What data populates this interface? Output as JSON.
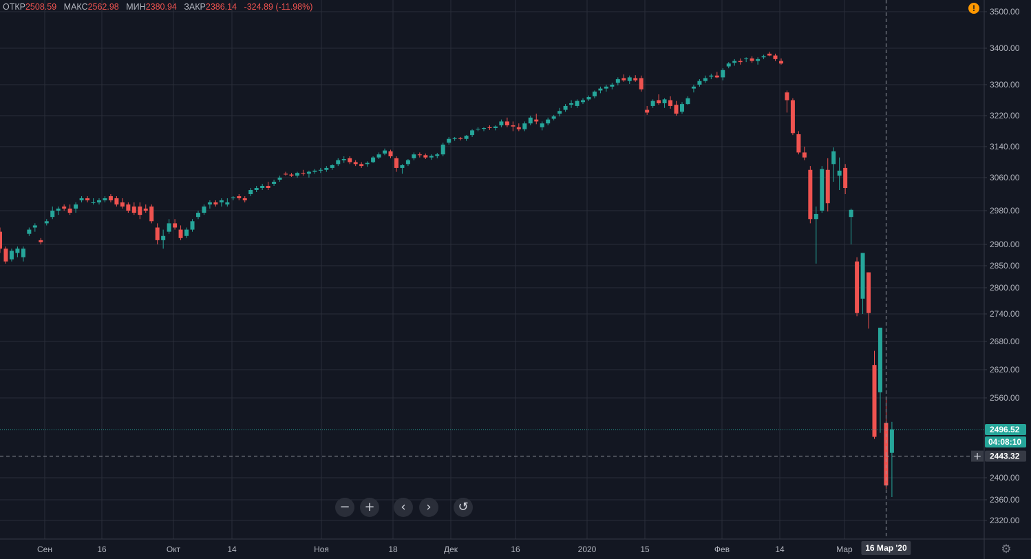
{
  "header": {
    "open_label": "ОТКР",
    "open_value": "2508.59",
    "high_label": "МАКС",
    "high_value": "2562.98",
    "low_label": "МИН",
    "low_value": "2380.94",
    "close_label": "ЗАКР",
    "close_value": "2386.14",
    "change_value": "-324.89 (-11.98%)",
    "warning_icon": "!"
  },
  "toolbar": {
    "zoom_out_icon": "−",
    "zoom_in_icon": "+",
    "scroll_left_icon": "‹",
    "scroll_right_icon": "›",
    "reset_icon": "↺",
    "settings_icon": "⚙"
  },
  "colors": {
    "background": "#131722",
    "grid": "#2a2e39",
    "up": "#26a69a",
    "down": "#ef5350",
    "text": "#b2b5be"
  },
  "chart_data": {
    "type": "candlestick",
    "title": "",
    "price_axis_labels": [
      "3500.00",
      "3400.00",
      "3300.00",
      "3220.00",
      "3140.00",
      "3060.00",
      "2980.00",
      "2900.00",
      "2850.00",
      "2800.00",
      "2740.00",
      "2680.00",
      "2620.00",
      "2560.00",
      "2400.00",
      "2360.00",
      "2320.00"
    ],
    "price_axis_values": [
      3500,
      3400,
      3300,
      3220,
      3140,
      3060,
      2980,
      2900,
      2850,
      2800,
      2740,
      2680,
      2620,
      2560,
      2400,
      2360,
      2320
    ],
    "time_axis_labels": [
      "Сен",
      "16",
      "Окт",
      "14",
      "Ноя",
      "18",
      "Дек",
      "16",
      "2020",
      "15",
      "Фев",
      "14",
      "Мар"
    ],
    "last_price_label": "2496.52",
    "countdown_label": "04:08:10",
    "crosshair_price_label": "2443.32",
    "crosshair_date_label": "16 Мар '20",
    "candles": [
      [
        2930,
        2940,
        2880,
        2890
      ],
      [
        2890,
        2895,
        2855,
        2860
      ],
      [
        2865,
        2890,
        2860,
        2885
      ],
      [
        2880,
        2895,
        2870,
        2890
      ],
      [
        2870,
        2895,
        2860,
        2890
      ],
      [
        2925,
        2940,
        2920,
        2935
      ],
      [
        2940,
        2950,
        2930,
        2945
      ],
      [
        2910,
        2915,
        2900,
        2905
      ],
      [
        2950,
        2960,
        2945,
        2955
      ],
      [
        2965,
        2990,
        2960,
        2980
      ],
      [
        2980,
        2990,
        2970,
        2985
      ],
      [
        2990,
        2995,
        2980,
        2985
      ],
      [
        2985,
        2995,
        2970,
        2975
      ],
      [
        2985,
        3000,
        2975,
        2995
      ],
      [
        3005,
        3015,
        3000,
        3010
      ],
      [
        3010,
        3015,
        3000,
        3005
      ],
      [
        3000,
        3010,
        2995,
        3000
      ],
      [
        3000,
        3010,
        2995,
        3005
      ],
      [
        3005,
        3015,
        3000,
        3010
      ],
      [
        3015,
        3020,
        3000,
        3005
      ],
      [
        3010,
        3015,
        2990,
        2995
      ],
      [
        3000,
        3010,
        2985,
        2990
      ],
      [
        2995,
        3000,
        2975,
        2980
      ],
      [
        2990,
        3000,
        2970,
        2975
      ],
      [
        2990,
        3000,
        2960,
        2970
      ],
      [
        2985,
        2995,
        2975,
        2980
      ],
      [
        2990,
        2995,
        2950,
        2955
      ],
      [
        2940,
        2950,
        2900,
        2910
      ],
      [
        2910,
        2935,
        2890,
        2920
      ],
      [
        2930,
        2960,
        2925,
        2950
      ],
      [
        2950,
        2960,
        2935,
        2940
      ],
      [
        2935,
        2945,
        2910,
        2915
      ],
      [
        2920,
        2940,
        2915,
        2935
      ],
      [
        2935,
        2960,
        2930,
        2955
      ],
      [
        2965,
        2980,
        2960,
        2975
      ],
      [
        2975,
        2995,
        2970,
        2990
      ],
      [
        2995,
        3005,
        2985,
        3000
      ],
      [
        3000,
        3005,
        2990,
        2995
      ],
      [
        3000,
        3010,
        2990,
        3005
      ],
      [
        2995,
        3010,
        2990,
        3000
      ],
      [
        3010,
        3015,
        3005,
        3012
      ],
      [
        3015,
        3020,
        3005,
        3010
      ],
      [
        3010,
        3015,
        3000,
        3005
      ],
      [
        3020,
        3035,
        3015,
        3030
      ],
      [
        3030,
        3040,
        3025,
        3035
      ],
      [
        3035,
        3045,
        3030,
        3040
      ],
      [
        3040,
        3050,
        3030,
        3035
      ],
      [
        3045,
        3055,
        3040,
        3050
      ],
      [
        3055,
        3065,
        3050,
        3060
      ],
      [
        3070,
        3075,
        3065,
        3068
      ],
      [
        3068,
        3072,
        3062,
        3065
      ],
      [
        3065,
        3075,
        3060,
        3072
      ],
      [
        3072,
        3080,
        3065,
        3070
      ],
      [
        3070,
        3078,
        3060,
        3075
      ],
      [
        3075,
        3082,
        3070,
        3078
      ],
      [
        3078,
        3085,
        3072,
        3080
      ],
      [
        3080,
        3090,
        3075,
        3085
      ],
      [
        3085,
        3095,
        3080,
        3092
      ],
      [
        3095,
        3110,
        3090,
        3105
      ],
      [
        3105,
        3115,
        3098,
        3108
      ],
      [
        3110,
        3115,
        3095,
        3100
      ],
      [
        3100,
        3105,
        3090,
        3095
      ],
      [
        3095,
        3100,
        3085,
        3090
      ],
      [
        3095,
        3102,
        3088,
        3098
      ],
      [
        3100,
        3115,
        3098,
        3112
      ],
      [
        3112,
        3125,
        3108,
        3120
      ],
      [
        3122,
        3135,
        3118,
        3130
      ],
      [
        3128,
        3132,
        3110,
        3115
      ],
      [
        3110,
        3115,
        3075,
        3085
      ],
      [
        3085,
        3095,
        3070,
        3092
      ],
      [
        3095,
        3108,
        3090,
        3105
      ],
      [
        3110,
        3125,
        3105,
        3120
      ],
      [
        3120,
        3125,
        3112,
        3118
      ],
      [
        3118,
        3122,
        3108,
        3112
      ],
      [
        3112,
        3120,
        3106,
        3116
      ],
      [
        3116,
        3124,
        3110,
        3120
      ],
      [
        3120,
        3150,
        3115,
        3145
      ],
      [
        3150,
        3165,
        3145,
        3160
      ],
      [
        3160,
        3165,
        3155,
        3162
      ],
      [
        3162,
        3165,
        3156,
        3160
      ],
      [
        3160,
        3170,
        3155,
        3168
      ],
      [
        3170,
        3185,
        3165,
        3182
      ],
      [
        3185,
        3190,
        3180,
        3186
      ],
      [
        3186,
        3190,
        3180,
        3188
      ],
      [
        3190,
        3195,
        3183,
        3188
      ],
      [
        3188,
        3195,
        3182,
        3192
      ],
      [
        3195,
        3210,
        3190,
        3205
      ],
      [
        3205,
        3215,
        3190,
        3195
      ],
      [
        3195,
        3205,
        3180,
        3192
      ],
      [
        3190,
        3200,
        3180,
        3185
      ],
      [
        3185,
        3205,
        3180,
        3200
      ],
      [
        3200,
        3220,
        3195,
        3215
      ],
      [
        3210,
        3225,
        3198,
        3205
      ],
      [
        3190,
        3205,
        3182,
        3200
      ],
      [
        3200,
        3215,
        3195,
        3210
      ],
      [
        3212,
        3222,
        3208,
        3218
      ],
      [
        3225,
        3240,
        3218,
        3232
      ],
      [
        3235,
        3250,
        3230,
        3245
      ],
      [
        3248,
        3260,
        3240,
        3252
      ],
      [
        3245,
        3262,
        3240,
        3258
      ],
      [
        3255,
        3265,
        3250,
        3260
      ],
      [
        3262,
        3272,
        3258,
        3268
      ],
      [
        3270,
        3285,
        3265,
        3282
      ],
      [
        3285,
        3295,
        3278,
        3290
      ],
      [
        3290,
        3300,
        3282,
        3295
      ],
      [
        3295,
        3305,
        3288,
        3300
      ],
      [
        3305,
        3320,
        3298,
        3315
      ],
      [
        3318,
        3328,
        3308,
        3312
      ],
      [
        3310,
        3325,
        3302,
        3320
      ],
      [
        3318,
        3326,
        3308,
        3312
      ],
      [
        3318,
        3325,
        3282,
        3288
      ],
      [
        3235,
        3245,
        3222,
        3228
      ],
      [
        3245,
        3262,
        3240,
        3258
      ],
      [
        3260,
        3275,
        3248,
        3252
      ],
      [
        3252,
        3265,
        3240,
        3262
      ],
      [
        3260,
        3270,
        3238,
        3245
      ],
      [
        3248,
        3258,
        3220,
        3225
      ],
      [
        3230,
        3255,
        3225,
        3250
      ],
      [
        3250,
        3270,
        3248,
        3265
      ],
      [
        3290,
        3300,
        3280,
        3295
      ],
      [
        3300,
        3315,
        3295,
        3310
      ],
      [
        3310,
        3325,
        3305,
        3318
      ],
      [
        3322,
        3330,
        3315,
        3325
      ],
      [
        3325,
        3335,
        3318,
        3320
      ],
      [
        3320,
        3345,
        3312,
        3340
      ],
      [
        3350,
        3362,
        3345,
        3358
      ],
      [
        3360,
        3370,
        3352,
        3365
      ],
      [
        3365,
        3372,
        3355,
        3362
      ],
      [
        3370,
        3375,
        3362,
        3372
      ],
      [
        3372,
        3378,
        3360,
        3365
      ],
      [
        3365,
        3375,
        3355,
        3370
      ],
      [
        3375,
        3382,
        3370,
        3378
      ],
      [
        3385,
        3390,
        3378,
        3380
      ],
      [
        3380,
        3385,
        3365,
        3370
      ],
      [
        3365,
        3372,
        3355,
        3358
      ],
      [
        3280,
        3285,
        3228,
        3260
      ],
      [
        3260,
        3265,
        3170,
        3175
      ],
      [
        3172,
        3180,
        3120,
        3125
      ],
      [
        3125,
        3140,
        3105,
        3112
      ],
      [
        3080,
        3090,
        2950,
        2960
      ],
      [
        2960,
        2990,
        2855,
        2972
      ],
      [
        2980,
        3090,
        2975,
        3082
      ],
      [
        3080,
        3110,
        2978,
        2998
      ],
      [
        3095,
        3138,
        3050,
        3128
      ],
      [
        3065,
        3112,
        3030,
        3078
      ],
      [
        3085,
        3095,
        3020,
        3035
      ],
      [
        2965,
        2985,
        2900,
        2982
      ],
      [
        2860,
        2870,
        2735,
        2742
      ],
      [
        2775,
        2880,
        2740,
        2880
      ],
      [
        2835,
        2835,
        2708,
        2742
      ],
      [
        2630,
        2660,
        2478,
        2482
      ],
      [
        2572,
        2710,
        2490,
        2710
      ],
      [
        2510,
        2563,
        2380,
        2386
      ],
      [
        2450,
        2512,
        2365,
        2497
      ]
    ]
  }
}
